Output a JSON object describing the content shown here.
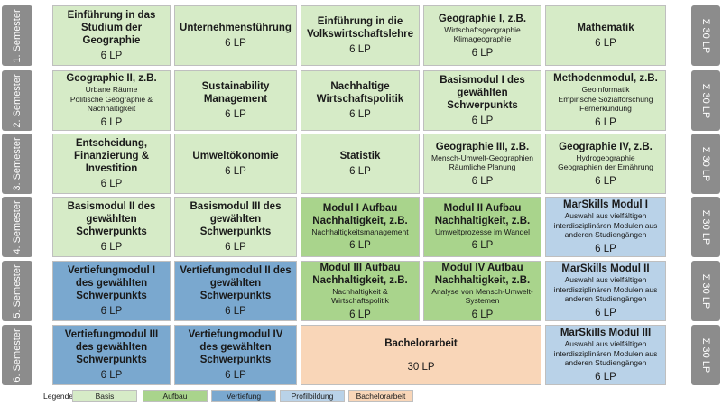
{
  "semesters": [
    "1. Semester",
    "2. Semester",
    "3. Semester",
    "4. Semester",
    "5. Semester",
    "6. Semester"
  ],
  "lp_total": "Σ 30 LP",
  "modules": [
    {
      "title": "Einführung in das Studium der Geographie",
      "sub": "",
      "lp": "6 LP",
      "type": "basis"
    },
    {
      "title": "Unternehmensführung",
      "sub": "",
      "lp": "6 LP",
      "type": "basis"
    },
    {
      "title": "Einführung in die Volkswirtschaftslehre",
      "sub": "",
      "lp": "6 LP",
      "type": "basis"
    },
    {
      "title": "Geographie I, z.B.",
      "sub": "Wirtschaftsgeographie\nKlimageographie",
      "lp": "6 LP",
      "type": "basis"
    },
    {
      "title": "Mathematik",
      "sub": "",
      "lp": "6 LP",
      "type": "basis"
    },
    {
      "title": "Geographie II, z.B.",
      "sub": "Urbane Räume\nPolitische Geographie &\nNachhaltigkeit",
      "lp": "6 LP",
      "type": "basis"
    },
    {
      "title": "Sustainability Management",
      "sub": "",
      "lp": "6 LP",
      "type": "basis"
    },
    {
      "title": "Nachhaltige Wirtschaftspolitik",
      "sub": "",
      "lp": "6 LP",
      "type": "basis"
    },
    {
      "title": "Basismodul I des gewählten Schwerpunkts",
      "sub": "",
      "lp": "6 LP",
      "type": "basis"
    },
    {
      "title": "Methodenmodul, z.B.",
      "sub": "Geoinformatik\nEmpirische Sozialforschung\nFernerkundung",
      "lp": "6 LP",
      "type": "basis"
    },
    {
      "title": "Entscheidung, Finanzierung & Investition",
      "sub": "",
      "lp": "6 LP",
      "type": "basis"
    },
    {
      "title": "Umweltökonomie",
      "sub": "",
      "lp": "6 LP",
      "type": "basis"
    },
    {
      "title": "Statistik",
      "sub": "",
      "lp": "6 LP",
      "type": "basis"
    },
    {
      "title": "Geographie III, z.B.",
      "sub": "Mensch-Umwelt-Geographien\nRäumliche Planung",
      "lp": "6 LP",
      "type": "basis"
    },
    {
      "title": "Geographie IV, z.B.",
      "sub": "Hydrogeographie\nGeographien der Ernährung",
      "lp": "6 LP",
      "type": "basis"
    },
    {
      "title": "Basismodul II des gewählten Schwerpunkts",
      "sub": "",
      "lp": "6 LP",
      "type": "basis"
    },
    {
      "title": "Basismodul III des gewählten Schwerpunkts",
      "sub": "",
      "lp": "6 LP",
      "type": "basis"
    },
    {
      "title": "Modul I Aufbau Nachhaltigkeit, z.B.",
      "sub": "Nachhaltigkeitsmanagement",
      "lp": "6 LP",
      "type": "aufbau"
    },
    {
      "title": "Modul II Aufbau Nachhaltigkeit, z.B.",
      "sub": "Umweltprozesse im Wandel",
      "lp": "6 LP",
      "type": "aufbau"
    },
    {
      "title": "MarSkills Modul I",
      "sub": "Auswahl aus vielfältigen interdisziplinären Modulen aus anderen Studiengängen",
      "lp": "6 LP",
      "type": "profil"
    },
    {
      "title": "Vertiefungmodul I des gewählten Schwerpunkts",
      "sub": "",
      "lp": "6 LP",
      "type": "vertiefung"
    },
    {
      "title": "Vertiefungmodul II des gewählten Schwerpunkts",
      "sub": "",
      "lp": "6 LP",
      "type": "vertiefung"
    },
    {
      "title": "Modul III Aufbau Nachhaltigkeit, z.B.",
      "sub": "Nachhaltigkeit &\nWirtschaftspolitik",
      "lp": "6 LP",
      "type": "aufbau"
    },
    {
      "title": "Modul IV Aufbau Nachhaltigkeit, z.B.",
      "sub": "Analyse von Mensch-Umwelt-\nSystemen",
      "lp": "6 LP",
      "type": "aufbau"
    },
    {
      "title": "MarSkills Modul II",
      "sub": "Auswahl aus vielfältigen interdisziplinären Modulen aus anderen Studiengängen",
      "lp": "6 LP",
      "type": "profil"
    },
    {
      "title": "Vertiefungmodul III des gewählten Schwerpunkts",
      "sub": "",
      "lp": "6 LP",
      "type": "vertiefung"
    },
    {
      "title": "Vertiefungmodul IV des gewählten Schwerpunkts",
      "sub": "",
      "lp": "6 LP",
      "type": "vertiefung"
    },
    {
      "title": "Bachelorarbeit",
      "sub": "",
      "lp": "30 LP",
      "type": "bachelor"
    },
    {
      "title": "MarSkills Modul III",
      "sub": "Auswahl aus vielfältigen interdisziplinären Modulen aus anderen Studiengängen",
      "lp": "6 LP",
      "type": "profil"
    }
  ],
  "legend": {
    "label": "Legende:",
    "items": [
      {
        "label": "Basis",
        "type": "basis"
      },
      {
        "label": "Aufbau",
        "type": "aufbau"
      },
      {
        "label": "Vertiefung",
        "type": "vertiefung"
      },
      {
        "label": "Profilbildung",
        "type": "profil"
      },
      {
        "label": "Bachelorarbeit",
        "type": "bachelor"
      }
    ]
  },
  "colors": {
    "basis": "#d6ebc7",
    "aufbau": "#a9d48c",
    "vertiefung": "#7aa8cf",
    "profil": "#b9d2e8",
    "bachelor": "#f9d6b8",
    "sidebar": "#8c8c8c"
  }
}
